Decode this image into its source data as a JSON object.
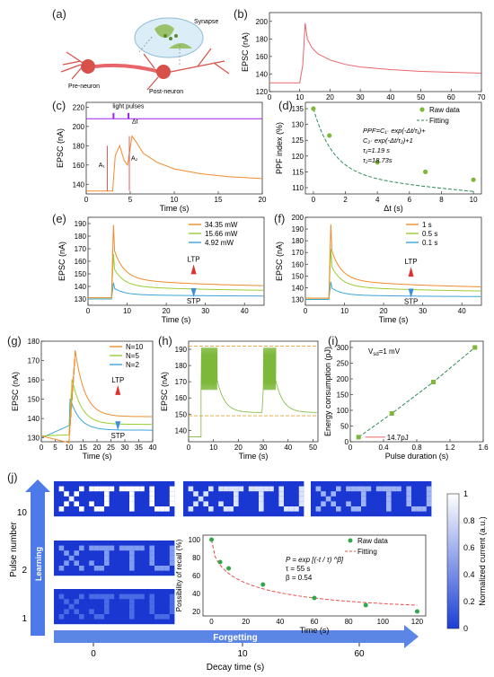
{
  "panel_labels": {
    "a": "(a)",
    "b": "(b)",
    "c": "(c)",
    "d": "(d)",
    "e": "(e)",
    "f": "(f)",
    "g": "(g)",
    "h": "(h)",
    "i": "(i)",
    "j": "(j)"
  },
  "schematic": {
    "synapse": "Synapse",
    "pre": "Pre-neuron",
    "post": "Post-neuron"
  },
  "colors": {
    "red": "#e8656b",
    "orange": "#f28b2b",
    "green": "#7db83a",
    "lime": "#9acd32",
    "blue": "#3aa6d8",
    "purple": "#a020f0",
    "dashgreen": "#2e8b57",
    "map_dark": "#1a3fd6",
    "map_light": "#ffffff"
  },
  "chart_data": [
    {
      "id": "b",
      "type": "line",
      "ylabel": "EPSC (nA)",
      "xlabel": "",
      "xlim": [
        0,
        70
      ],
      "ylim": [
        120,
        210
      ],
      "xticks": [
        0,
        10,
        20,
        30,
        40,
        50,
        60,
        70
      ],
      "yticks": [
        120,
        140,
        160,
        180,
        200
      ],
      "series": [
        {
          "color": "red",
          "x": [
            0,
            10,
            11,
            11.8,
            12.5,
            14,
            16,
            20,
            25,
            30,
            40,
            50,
            60,
            70
          ],
          "y": [
            130,
            130,
            150,
            198,
            180,
            170,
            163,
            156,
            151,
            148,
            145,
            143,
            142,
            141
          ]
        }
      ]
    },
    {
      "id": "c",
      "type": "line",
      "ylabel": "EPSC (nA)",
      "xlabel": "Time (s)",
      "xlim": [
        0,
        20
      ],
      "ylim": [
        130,
        225
      ],
      "xticks": [
        0,
        5,
        10,
        15,
        20
      ],
      "yticks": [
        140,
        160,
        180,
        200,
        220
      ],
      "annotations": {
        "pulses": "light pulses",
        "dt": "Δt",
        "a1": "A₁",
        "a2": "A₂"
      },
      "series": [
        {
          "color": "orange",
          "x": [
            0,
            3,
            3.3,
            3.8,
            4.3,
            4.7,
            5.2,
            5.6,
            6.5,
            8,
            10,
            13,
            16,
            20
          ],
          "y": [
            133,
            133,
            170,
            180,
            165,
            160,
            190,
            185,
            172,
            163,
            156,
            151,
            148,
            146
          ]
        },
        {
          "color": "purple",
          "x": [
            0,
            20
          ],
          "y": [
            208,
            208
          ]
        }
      ]
    },
    {
      "id": "d",
      "type": "scatter",
      "ylabel": "PPF index (%)",
      "xlabel": "Δt (s)",
      "xlim": [
        -0.5,
        10.5
      ],
      "ylim": [
        108,
        137
      ],
      "xticks": [
        0,
        2,
        4,
        6,
        8,
        10
      ],
      "yticks": [
        110,
        115,
        120,
        125,
        130,
        135
      ],
      "legend": [
        "Raw data",
        "Fitting"
      ],
      "equation": [
        "PPF=C₁· exp(-Δt/τ₁)+",
        "C₂· exp(-Δt/τ₂)+1",
        "τ₁=1.19 s",
        "τ₂=18.73s"
      ],
      "x": [
        0,
        1,
        4,
        7,
        10
      ],
      "y": [
        135,
        126.5,
        118,
        115,
        112.5
      ]
    },
    {
      "id": "e",
      "type": "line",
      "ylabel": "EPSC (nA)",
      "xlabel": "Time (s)",
      "xlim": [
        0,
        45
      ],
      "ylim": [
        125,
        195
      ],
      "xticks": [
        0,
        10,
        20,
        30,
        40
      ],
      "yticks": [
        130,
        140,
        150,
        160,
        170,
        180,
        190
      ],
      "legend": [
        "34.35 mW",
        "15.66 mW",
        "4.92 mW"
      ],
      "ltp": "LTP",
      "stp": "STP",
      "series": [
        {
          "color": "orange",
          "name": "34.35 mW",
          "peak": 189,
          "base": 131,
          "end": 139
        },
        {
          "color": "lime",
          "name": "15.66 mW",
          "peak": 166,
          "base": 131,
          "end": 136
        },
        {
          "color": "blue",
          "name": "4.92 mW",
          "peak": 143,
          "base": 130,
          "end": 132
        }
      ]
    },
    {
      "id": "f",
      "type": "line",
      "ylabel": "EPSC (nA)",
      "xlabel": "Time (s)",
      "xlim": [
        0,
        45
      ],
      "ylim": [
        125,
        200
      ],
      "xticks": [
        0,
        10,
        20,
        30,
        40
      ],
      "yticks": [
        130,
        140,
        150,
        160,
        170,
        180,
        190,
        200
      ],
      "legend": [
        "1 s",
        "0.5 s",
        "0.1 s"
      ],
      "ltp": "LTP",
      "stp": "STP",
      "series": [
        {
          "color": "orange",
          "name": "1 s",
          "peak": 194,
          "base": 131,
          "end": 139
        },
        {
          "color": "lime",
          "name": "0.5 s",
          "peak": 173,
          "base": 131,
          "end": 136
        },
        {
          "color": "blue",
          "name": "0.1 s",
          "peak": 145,
          "base": 130,
          "end": 132
        }
      ]
    },
    {
      "id": "g",
      "type": "line",
      "ylabel": "EPSC (nA)",
      "xlabel": "Time (s)",
      "xlim": [
        0,
        40
      ],
      "ylim": [
        128,
        180
      ],
      "xticks": [
        0,
        5,
        10,
        15,
        20,
        25,
        30,
        35,
        40
      ],
      "yticks": [
        130,
        140,
        150,
        160,
        170,
        180
      ],
      "legend": [
        "N=10",
        "N=5",
        "N=2"
      ],
      "ltp": "LTP",
      "stp": "STP",
      "series": [
        {
          "color": "orange",
          "name": "N=10",
          "peak": 175,
          "base": 131,
          "end": 141,
          "n": 10
        },
        {
          "color": "lime",
          "name": "N=5",
          "peak": 160,
          "base": 131,
          "end": 137,
          "n": 5
        },
        {
          "color": "blue",
          "name": "N=2",
          "peak": 150,
          "base": 130,
          "end": 134,
          "n": 2
        }
      ]
    },
    {
      "id": "h",
      "type": "line",
      "ylabel": "EPSC (nA)",
      "xlabel": "Time (s)",
      "xlim": [
        0,
        52
      ],
      "ylim": [
        133,
        195
      ],
      "xticks": [
        0,
        10,
        20,
        30,
        40,
        50
      ],
      "yticks": [
        140,
        150,
        160,
        170,
        180,
        190
      ],
      "hlines": [
        149,
        192
      ]
    },
    {
      "id": "i",
      "type": "line",
      "ylabel": "Energy consumption (pJ)",
      "xlabel": "Pulse duration (s)",
      "xlim": [
        0,
        1.6
      ],
      "ylim": [
        0,
        320
      ],
      "xticks": [
        0,
        0.4,
        0.8,
        1.2,
        1.6
      ],
      "yticks": [
        0,
        50,
        100,
        150,
        200,
        250,
        300
      ],
      "annotation": "V",
      "annotation_sub": "sd",
      "annotation_rest": "=1 mV",
      "callout": "14.7pJ",
      "x": [
        0.1,
        0.5,
        1.0,
        1.5
      ],
      "y": [
        14.7,
        90,
        190,
        300
      ]
    },
    {
      "id": "j",
      "type": "scatter",
      "ylabel": "Possibility of recall (%)",
      "xlabel": "Time (s)",
      "xlim": [
        -5,
        125
      ],
      "ylim": [
        15,
        105
      ],
      "xticks": [
        0,
        20,
        40,
        60,
        80,
        100,
        120
      ],
      "yticks": [
        20,
        40,
        60,
        80,
        100
      ],
      "legend": [
        "Raw data",
        "Fitting"
      ],
      "eq": [
        "P = exp [(-t / τ) ^β]",
        "τ = 55 s",
        "β = 0.54"
      ],
      "x": [
        0,
        5,
        10,
        30,
        60,
        90,
        120
      ],
      "y": [
        100,
        75,
        68,
        50,
        35,
        27,
        20
      ]
    }
  ],
  "panel_j": {
    "pulse_label": "Pulse number",
    "learning": "Learning",
    "forgetting": "Forgetting",
    "decay_label": "Decay time (s)",
    "decay_ticks": [
      "0",
      "10",
      "60"
    ],
    "pulse_ticks": [
      "10",
      "2",
      "1"
    ],
    "word": "XJTU",
    "colorbar_label": "Normalized current (a.u.)",
    "colorbar_ticks": [
      "1",
      "0.8",
      "0.6",
      "0.4",
      "0.2",
      "0"
    ]
  }
}
